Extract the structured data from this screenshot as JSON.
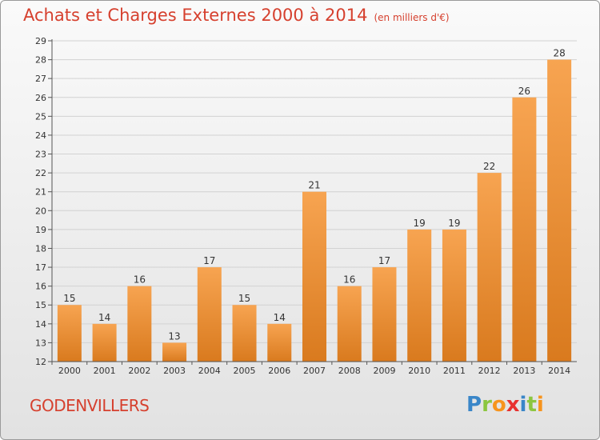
{
  "title": "Achats et Charges Externes 2000 à 2014",
  "subtitle": "(en milliers d'€)",
  "commune": "GODENVILLERS",
  "logo": {
    "letters": [
      "P",
      "r",
      "o",
      "x",
      "i",
      "t",
      "i"
    ],
    "colors": [
      "#3a86c8",
      "#8cc63f",
      "#f7941d",
      "#e8312f",
      "#3a86c8",
      "#8cc63f",
      "#f7941d"
    ]
  },
  "colors": {
    "title": "#d6402e",
    "bar_light": "#f7a451",
    "bar_dark": "#d97a1e",
    "grid": "#d2d2d2",
    "axis": "#555555"
  },
  "chart_data": {
    "type": "bar",
    "title": "Achats et Charges Externes 2000 à 2014",
    "categories": [
      "2000",
      "2001",
      "2002",
      "2003",
      "2004",
      "2005",
      "2006",
      "2007",
      "2008",
      "2009",
      "2010",
      "2011",
      "2012",
      "2013",
      "2014"
    ],
    "values": [
      15,
      14,
      16,
      13,
      17,
      15,
      14,
      21,
      16,
      17,
      19,
      19,
      22,
      26,
      28
    ],
    "ylim": [
      12,
      29
    ],
    "yticks": [
      12,
      13,
      14,
      15,
      16,
      17,
      18,
      19,
      20,
      21,
      22,
      23,
      24,
      25,
      26,
      27,
      28,
      29
    ],
    "grid": true,
    "data_labels": true
  }
}
